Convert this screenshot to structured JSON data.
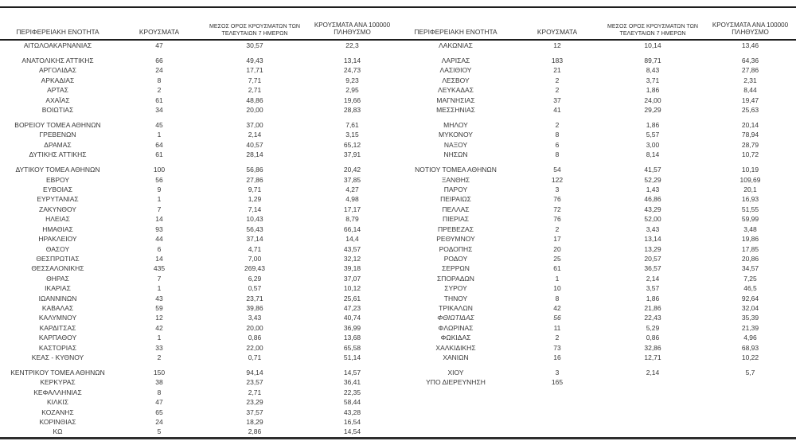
{
  "colors": {
    "text": "#383838",
    "rule_top": "#1e1e1e",
    "header_rule": "#1e1e1e",
    "rule_bottom": "#2d2d2d",
    "background": "#ffffff"
  },
  "columns": [
    {
      "key": "region",
      "label": "ΠΕΡΙΦΕΡΕΙΑΚΗ ΕΝΟΤΗΤΑ"
    },
    {
      "key": "cases",
      "label": "ΚΡΟΥΣΜΑΤΑ"
    },
    {
      "key": "avg7",
      "label": "ΜΕΣΟΣ ΟΡΟΣ ΚΡΟΥΣΜΑΤΩΝ ΤΩΝ ΤΕΛΕΥΤΑΙΩΝ 7 ΗΜΕΡΩΝ"
    },
    {
      "key": "per100k",
      "label": "ΚΡΟΥΣΜΑΤΑ ΑΝΑ 100000 ΠΛΗΘΥΣΜΟ"
    }
  ],
  "italic_rows": [
    "ΦΘΙΩΤΙΔΑΣ"
  ],
  "left_groups": [
    [
      [
        "ΑΙΤΩΛΟΑΚΑΡΝΑΝΙΑΣ",
        "47",
        "30,57",
        "22,3"
      ]
    ],
    [
      [
        "ΑΝΑΤΟΛΙΚΗΣ ΑΤΤΙΚΗΣ",
        "66",
        "49,43",
        "13,14"
      ],
      [
        "ΑΡΓΟΛΙΔΑΣ",
        "24",
        "17,71",
        "24,73"
      ],
      [
        "ΑΡΚΑΔΙΑΣ",
        "8",
        "7,71",
        "9,23"
      ],
      [
        "ΑΡΤΑΣ",
        "2",
        "2,71",
        "2,95"
      ],
      [
        "ΑΧΑΪΑΣ",
        "61",
        "48,86",
        "19,66"
      ],
      [
        "ΒΟΙΩΤΙΑΣ",
        "34",
        "20,00",
        "28,83"
      ]
    ],
    [
      [
        "ΒΟΡΕΙΟΥ ΤΟΜΕΑ ΑΘΗΝΩΝ",
        "45",
        "37,00",
        "7,61"
      ],
      [
        "ΓΡΕΒΕΝΩΝ",
        "1",
        "2,14",
        "3,15"
      ],
      [
        "ΔΡΑΜΑΣ",
        "64",
        "40,57",
        "65,12"
      ],
      [
        "ΔΥΤΙΚΗΣ ΑΤΤΙΚΗΣ",
        "61",
        "28,14",
        "37,91"
      ]
    ],
    [
      [
        "ΔΥΤΙΚΟΥ ΤΟΜΕΑ ΑΘΗΝΩΝ",
        "100",
        "56,86",
        "20,42"
      ],
      [
        "ΕΒΡΟΥ",
        "56",
        "27,86",
        "37,85"
      ],
      [
        "ΕΥΒΟΙΑΣ",
        "9",
        "9,71",
        "4,27"
      ],
      [
        "ΕΥΡΥΤΑΝΙΑΣ",
        "1",
        "1,29",
        "4,98"
      ],
      [
        "ΖΑΚΥΝΘΟΥ",
        "7",
        "7,14",
        "17,17"
      ],
      [
        "ΗΛΕΙΑΣ",
        "14",
        "10,43",
        "8,79"
      ],
      [
        "ΗΜΑΘΙΑΣ",
        "93",
        "56,43",
        "66,14"
      ],
      [
        "ΗΡΑΚΛΕΙΟΥ",
        "44",
        "37,14",
        "14,4"
      ],
      [
        "ΘΑΣΟΥ",
        "6",
        "4,71",
        "43,57"
      ],
      [
        "ΘΕΣΠΡΩΤΙΑΣ",
        "14",
        "7,00",
        "32,12"
      ],
      [
        "ΘΕΣΣΑΛΟΝΙΚΗΣ",
        "435",
        "269,43",
        "39,18"
      ],
      [
        "ΘΗΡΑΣ",
        "7",
        "6,29",
        "37,07"
      ],
      [
        "ΙΚΑΡΙΑΣ",
        "1",
        "0,57",
        "10,12"
      ],
      [
        "ΙΩΑΝΝΙΝΩΝ",
        "43",
        "23,71",
        "25,61"
      ],
      [
        "ΚΑΒΑΛΑΣ",
        "59",
        "39,86",
        "47,23"
      ],
      [
        "ΚΑΛΥΜΝΟΥ",
        "12",
        "3,43",
        "40,74"
      ],
      [
        "ΚΑΡΔΙΤΣΑΣ",
        "42",
        "20,00",
        "36,99"
      ],
      [
        "ΚΑΡΠΑΘΟΥ",
        "1",
        "0,86",
        "13,68"
      ],
      [
        "ΚΑΣΤΟΡΙΑΣ",
        "33",
        "22,00",
        "65,58"
      ],
      [
        "ΚΕΑΣ - ΚΥΘΝΟΥ",
        "2",
        "0,71",
        "51,14"
      ]
    ],
    [
      [
        "ΚΕΝΤΡΙΚΟΥ ΤΟΜΕΑ ΑΘΗΝΩΝ",
        "150",
        "94,14",
        "14,57"
      ],
      [
        "ΚΕΡΚΥΡΑΣ",
        "38",
        "23,57",
        "36,41"
      ],
      [
        "ΚΕΦΑΛΛΗΝΙΑΣ",
        "8",
        "2,71",
        "22,35"
      ],
      [
        "ΚΙΛΚΙΣ",
        "47",
        "23,29",
        "58,44"
      ],
      [
        "ΚΟΖΑΝΗΣ",
        "65",
        "37,57",
        "43,28"
      ],
      [
        "ΚΟΡΙΝΘΙΑΣ",
        "24",
        "18,29",
        "16,54"
      ],
      [
        "ΚΩ",
        "5",
        "2,86",
        "14,54"
      ]
    ]
  ],
  "right_groups": [
    [
      [
        "ΛΑΚΩΝΙΑΣ",
        "12",
        "10,14",
        "13,46"
      ]
    ],
    [
      [
        "ΛΑΡΙΣΑΣ",
        "183",
        "89,71",
        "64,36"
      ],
      [
        "ΛΑΣΙΘΙΟΥ",
        "21",
        "8,43",
        "27,86"
      ],
      [
        "ΛΕΣΒΟΥ",
        "2",
        "3,71",
        "2,31"
      ],
      [
        "ΛΕΥΚΑΔΑΣ",
        "2",
        "1,86",
        "8,44"
      ],
      [
        "ΜΑΓΝΗΣΙΑΣ",
        "37",
        "24,00",
        "19,47"
      ],
      [
        "ΜΕΣΣΗΝΙΑΣ",
        "41",
        "29,29",
        "25,63"
      ]
    ],
    [
      [
        "ΜΗΛΟΥ",
        "2",
        "1,86",
        "20,14"
      ],
      [
        "ΜΥΚΟΝΟΥ",
        "8",
        "5,57",
        "78,94"
      ],
      [
        "ΝΑΞΟΥ",
        "6",
        "3,00",
        "28,79"
      ],
      [
        "ΝΗΣΩΝ",
        "8",
        "8,14",
        "10,72"
      ]
    ],
    [
      [
        "ΝΟΤΙΟΥ ΤΟΜΕΑ ΑΘΗΝΩΝ",
        "54",
        "41,57",
        "10,19"
      ],
      [
        "ΞΑΝΘΗΣ",
        "122",
        "52,29",
        "109,69"
      ],
      [
        "ΠΑΡΟΥ",
        "3",
        "1,43",
        "20,1"
      ],
      [
        "ΠΕΙΡΑΙΩΣ",
        "76",
        "46,86",
        "16,93"
      ],
      [
        "ΠΕΛΛΑΣ",
        "72",
        "43,29",
        "51,55"
      ],
      [
        "ΠΙΕΡΙΑΣ",
        "76",
        "52,00",
        "59,99"
      ],
      [
        "ΠΡΕΒΕΖΑΣ",
        "2",
        "3,43",
        "3,48"
      ],
      [
        "ΡΕΘΥΜΝΟΥ",
        "17",
        "13,14",
        "19,86"
      ],
      [
        "ΡΟΔΟΠΗΣ",
        "20",
        "13,29",
        "17,85"
      ],
      [
        "ΡΟΔΟΥ",
        "25",
        "20,57",
        "20,86"
      ],
      [
        "ΣΕΡΡΩΝ",
        "61",
        "36,57",
        "34,57"
      ],
      [
        "ΣΠΟΡΑΔΩΝ",
        "1",
        "2,14",
        "7,25"
      ],
      [
        "ΣΥΡΟΥ",
        "10",
        "3,57",
        "46,5"
      ],
      [
        "ΤΗΝΟΥ",
        "8",
        "1,86",
        "92,64"
      ],
      [
        "ΤΡΙΚΑΛΩΝ",
        "42",
        "21,86",
        "32,04"
      ],
      [
        "ΦΘΙΩΤΙΔΑΣ",
        "56",
        "22,43",
        "35,39"
      ],
      [
        "ΦΛΩΡΙΝΑΣ",
        "11",
        "5,29",
        "21,39"
      ],
      [
        "ΦΩΚΙΔΑΣ",
        "2",
        "0,86",
        "4,96"
      ],
      [
        "ΧΑΛΚΙΔΙΚΗΣ",
        "73",
        "32,86",
        "68,93"
      ],
      [
        "ΧΑΝΙΩΝ",
        "16",
        "12,71",
        "10,22"
      ]
    ],
    [
      [
        "ΧΙΟΥ",
        "3",
        "2,14",
        "5,7"
      ],
      [
        "ΥΠΟ ΔΙΕΡΕΥΝΗΣΗ",
        "165",
        "",
        ""
      ]
    ]
  ]
}
